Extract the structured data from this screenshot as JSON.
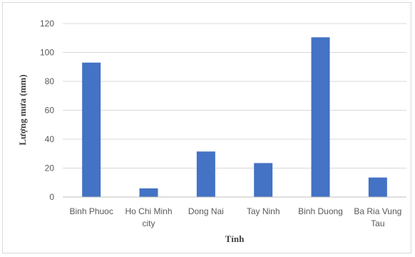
{
  "chart_data": {
    "type": "bar",
    "title": "",
    "xlabel": "Tỉnh",
    "ylabel": "Lượng mưa (mm)",
    "ylim": [
      0,
      120
    ],
    "yticks": [
      0,
      20,
      40,
      60,
      80,
      100,
      120
    ],
    "grid": true,
    "legend": "none",
    "bar_color": "#4472c4",
    "categories": [
      [
        "Binh Phuoc"
      ],
      [
        "Ho Chi Minh",
        "city"
      ],
      [
        "Dong Nai"
      ],
      [
        "Tay Ninh"
      ],
      [
        "Binh Duong"
      ],
      [
        "Ba Ria Vung",
        "Tau"
      ]
    ],
    "values": [
      93,
      6,
      31.5,
      23.5,
      110.5,
      13.5
    ]
  }
}
